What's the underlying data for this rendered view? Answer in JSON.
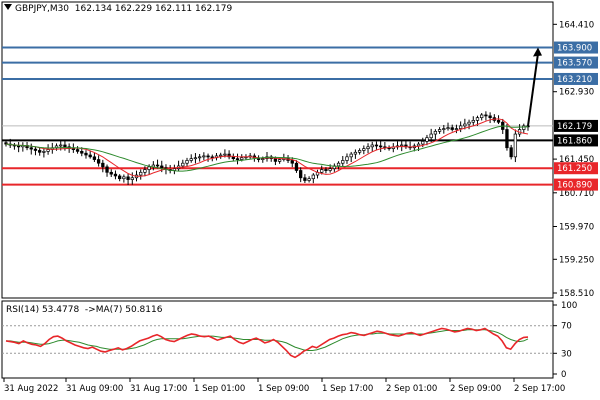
{
  "header": {
    "symbol": "GBPJPY,M30",
    "ohlc": "162.134 162.229 162.111 162.179"
  },
  "rsi_header": {
    "label": "RSI(14) 53.4778",
    "ma_label": "->MA(7) 50.8116"
  },
  "colors": {
    "blue_level": "#3b6ea5",
    "red_level": "#e8262a",
    "black_level": "#000000",
    "candle": "#000000",
    "ma_fast": "#e8262a",
    "ma_slow": "#2e8b2e",
    "rsi_line": "#e8262a",
    "rsi_ma": "#2e8b2e",
    "price_tag_bg": "#000000",
    "grid_text": "#000000"
  },
  "chart_data": [
    {
      "type": "candlestick",
      "y_axis_ticks": [
        "164.410",
        "162.930",
        "161.450",
        "160.710",
        "159.970",
        "159.250",
        "158.510"
      ],
      "y_axis_ticks_values": [
        164.41,
        162.93,
        161.45,
        160.71,
        159.97,
        159.25,
        158.51
      ],
      "x_axis_ticks": [
        "31 Aug 2022",
        "31 Aug 09:00",
        "31 Aug 17:00",
        "1 Sep 01:00",
        "1 Sep 09:00",
        "1 Sep 17:00",
        "2 Sep 01:00",
        "2 Sep 09:00",
        "2 Sep 17:00"
      ],
      "ylim": [
        158.4,
        164.9
      ],
      "levels": [
        {
          "label": "163.900",
          "value": 163.9,
          "color": "blue"
        },
        {
          "label": "163.570",
          "value": 163.57,
          "color": "blue"
        },
        {
          "label": "163.210",
          "value": 163.21,
          "color": "blue"
        },
        {
          "label": "161.860",
          "value": 161.86,
          "color": "black"
        },
        {
          "label": "161.250",
          "value": 161.25,
          "color": "red"
        },
        {
          "label": "160.890",
          "value": 160.89,
          "color": "red"
        }
      ],
      "current_price": {
        "label": "162.179",
        "value": 162.179
      },
      "close_series": [
        161.78,
        161.76,
        161.74,
        161.72,
        161.75,
        161.7,
        161.67,
        161.64,
        161.6,
        161.62,
        161.66,
        161.7,
        161.74,
        161.76,
        161.72,
        161.68,
        161.66,
        161.62,
        161.58,
        161.54,
        161.5,
        161.44,
        161.36,
        161.28,
        161.16,
        161.12,
        161.08,
        161.02,
        161.06,
        161.0,
        161.04,
        161.1,
        161.16,
        161.22,
        161.28,
        161.32,
        161.3,
        161.26,
        161.22,
        161.2,
        161.24,
        161.3,
        161.36,
        161.42,
        161.46,
        161.48,
        161.5,
        161.52,
        161.5,
        161.48,
        161.52,
        161.54,
        161.56,
        161.5,
        161.46,
        161.44,
        161.48,
        161.5,
        161.52,
        161.48,
        161.44,
        161.46,
        161.5,
        161.46,
        161.4,
        161.44,
        161.48,
        161.42,
        161.36,
        161.2,
        161.04,
        160.98,
        161.02,
        161.1,
        161.16,
        161.22,
        161.2,
        161.24,
        161.3,
        161.36,
        161.42,
        161.5,
        161.56,
        161.6,
        161.64,
        161.68,
        161.72,
        161.76,
        161.74,
        161.72,
        161.7,
        161.68,
        161.72,
        161.74,
        161.76,
        161.72,
        161.7,
        161.74,
        161.78,
        161.84,
        161.92,
        162.0,
        162.06,
        162.1,
        162.12,
        162.14,
        162.1,
        162.12,
        162.18,
        162.22,
        162.26,
        162.3,
        162.36,
        162.42,
        162.4,
        162.36,
        162.3,
        162.26,
        162.1,
        161.7,
        161.5,
        162.0,
        162.1,
        162.18,
        162.179
      ],
      "projection_arrow": {
        "from": 162.179,
        "to": 163.9
      }
    },
    {
      "type": "line",
      "title": "RSI(14) 53.4778 ->MA(7) 50.8116",
      "y_axis_ticks": [
        "100",
        "70",
        "30",
        "0"
      ],
      "y_axis_ticks_values": [
        100,
        70,
        30,
        0
      ],
      "ylim": [
        0,
        100
      ],
      "series": [
        {
          "name": "RSI(14)",
          "values": [
            48,
            47,
            46,
            44,
            48,
            45,
            43,
            42,
            40,
            44,
            50,
            54,
            55,
            52,
            48,
            45,
            42,
            40,
            38,
            37,
            39,
            36,
            33,
            32,
            34,
            36,
            38,
            35,
            37,
            40,
            44,
            48,
            50,
            52,
            55,
            57,
            54,
            50,
            48,
            47,
            50,
            53,
            56,
            58,
            57,
            55,
            54,
            55,
            52,
            49,
            51,
            53,
            55,
            50,
            46,
            44,
            47,
            50,
            52,
            49,
            45,
            47,
            50,
            46,
            40,
            34,
            27,
            24,
            28,
            33,
            36,
            40,
            38,
            42,
            46,
            50,
            52,
            55,
            57,
            58,
            60,
            59,
            57,
            56,
            58,
            60,
            62,
            61,
            59,
            57,
            56,
            55,
            57,
            59,
            60,
            58,
            56,
            58,
            60,
            62,
            64,
            66,
            65,
            63,
            61,
            62,
            64,
            66,
            65,
            63,
            64,
            66,
            62,
            58,
            55,
            48,
            38,
            36,
            44,
            50,
            53,
            53.4778
          ]
        },
        {
          "name": "MA(7)",
          "values": [
            48,
            48,
            47,
            46,
            46,
            46,
            45,
            44,
            43,
            43,
            44,
            46,
            48,
            49,
            49,
            48,
            47,
            46,
            44,
            42,
            41,
            40,
            38,
            37,
            36,
            36,
            36,
            36,
            36,
            37,
            38,
            40,
            42,
            45,
            48,
            50,
            51,
            51,
            51,
            51,
            51,
            51,
            52,
            53,
            54,
            55,
            55,
            55,
            55,
            54,
            53,
            53,
            53,
            52,
            51,
            50,
            50,
            50,
            50,
            50,
            49,
            49,
            49,
            48,
            47,
            45,
            42,
            39,
            37,
            35,
            34,
            34,
            35,
            37,
            39,
            42,
            45,
            48,
            51,
            53,
            55,
            56,
            57,
            57,
            58,
            58,
            59,
            59,
            59,
            58,
            58,
            58,
            58,
            58,
            58,
            58,
            58,
            58,
            59,
            60,
            61,
            62,
            63,
            63,
            63,
            63,
            63,
            64,
            64,
            64,
            64,
            64,
            63,
            62,
            60,
            57,
            53,
            50,
            48,
            47,
            48,
            50.8116
          ]
        }
      ]
    }
  ]
}
